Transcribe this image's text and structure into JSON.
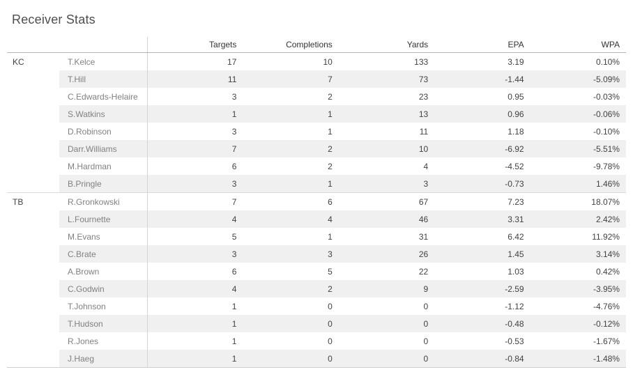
{
  "title": "Receiver Stats",
  "colors": {
    "band": "#f0f0f0",
    "rule": "#cfcfcf",
    "header_text": "#333333",
    "player_text": "#818181",
    "value_text": "#424242"
  },
  "chart_data": {
    "type": "table",
    "title": "Receiver Stats",
    "columns": [
      "Targets",
      "Completions",
      "Yards",
      "EPA",
      "WPA"
    ],
    "groups": [
      {
        "team": "KC",
        "rows": [
          {
            "player": "T.Kelce",
            "values": [
              "17",
              "10",
              "133",
              "3.19",
              "0.10%"
            ]
          },
          {
            "player": "T.Hill",
            "values": [
              "11",
              "7",
              "73",
              "-1.44",
              "-5.09%"
            ]
          },
          {
            "player": "C.Edwards-Helaire",
            "values": [
              "3",
              "2",
              "23",
              "0.95",
              "-0.03%"
            ]
          },
          {
            "player": "S.Watkins",
            "values": [
              "1",
              "1",
              "13",
              "0.96",
              "-0.06%"
            ]
          },
          {
            "player": "D.Robinson",
            "values": [
              "3",
              "1",
              "11",
              "1.18",
              "-0.10%"
            ]
          },
          {
            "player": "Darr.Williams",
            "values": [
              "7",
              "2",
              "10",
              "-6.92",
              "-5.51%"
            ]
          },
          {
            "player": "M.Hardman",
            "values": [
              "6",
              "2",
              "4",
              "-4.52",
              "-9.78%"
            ]
          },
          {
            "player": "B.Pringle",
            "values": [
              "3",
              "1",
              "3",
              "-0.73",
              "1.46%"
            ]
          }
        ]
      },
      {
        "team": "TB",
        "rows": [
          {
            "player": "R.Gronkowski",
            "values": [
              "7",
              "6",
              "67",
              "7.23",
              "18.07%"
            ]
          },
          {
            "player": "L.Fournette",
            "values": [
              "4",
              "4",
              "46",
              "3.31",
              "2.42%"
            ]
          },
          {
            "player": "M.Evans",
            "values": [
              "5",
              "1",
              "31",
              "6.42",
              "11.92%"
            ]
          },
          {
            "player": "C.Brate",
            "values": [
              "3",
              "3",
              "26",
              "1.45",
              "3.14%"
            ]
          },
          {
            "player": "A.Brown",
            "values": [
              "6",
              "5",
              "22",
              "1.03",
              "0.42%"
            ]
          },
          {
            "player": "C.Godwin",
            "values": [
              "4",
              "2",
              "9",
              "-2.59",
              "-3.95%"
            ]
          },
          {
            "player": "T.Johnson",
            "values": [
              "1",
              "0",
              "0",
              "-1.12",
              "-4.76%"
            ]
          },
          {
            "player": "T.Hudson",
            "values": [
              "1",
              "0",
              "0",
              "-0.48",
              "-0.12%"
            ]
          },
          {
            "player": "R.Jones",
            "values": [
              "1",
              "0",
              "0",
              "-0.53",
              "-1.67%"
            ]
          },
          {
            "player": "J.Haeg",
            "values": [
              "1",
              "0",
              "0",
              "-0.84",
              "-1.48%"
            ]
          }
        ]
      }
    ]
  }
}
